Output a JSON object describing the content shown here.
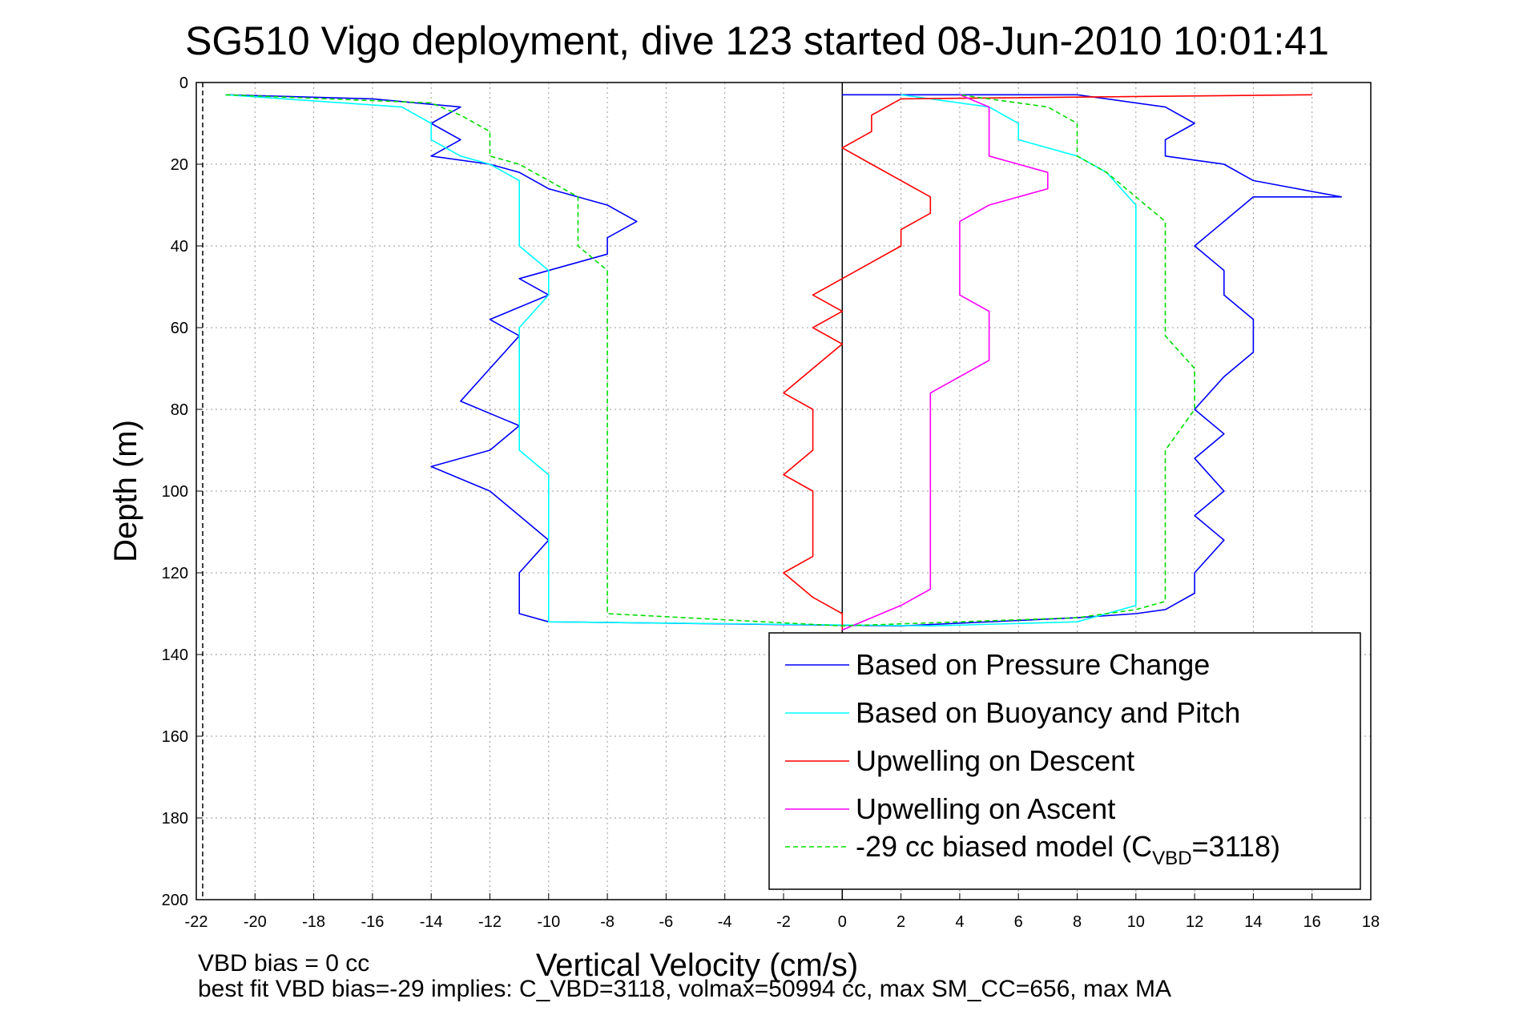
{
  "chart_data": {
    "type": "line",
    "title": "SG510 Vigo deployment, dive 123 started 08-Jun-2010 10:01:41",
    "xlabel": "Vertical Velocity (cm/s)",
    "ylabel": "Depth (m)",
    "xlim": [
      -22,
      18
    ],
    "ylim": [
      200,
      0
    ],
    "y_reversed": true,
    "grid": true,
    "x_ticks": [
      "-22",
      "-20",
      "-18",
      "-16",
      "-14",
      "-12",
      "-10",
      "-8",
      "-6",
      "-4",
      "-2",
      "0",
      "2",
      "4",
      "6",
      "8",
      "10",
      "12",
      "14",
      "16",
      "18"
    ],
    "y_ticks": [
      "0",
      "20",
      "40",
      "60",
      "80",
      "100",
      "120",
      "140",
      "160",
      "180",
      "200"
    ],
    "legend_position": "bottom-right",
    "series": [
      {
        "name": "Based on Pressure Change",
        "color": "#0000ff",
        "style": "solid",
        "points": [
          [
            -21,
            3
          ],
          [
            -16,
            4
          ],
          [
            -13,
            6
          ],
          [
            -14,
            10
          ],
          [
            -13,
            14
          ],
          [
            -14,
            18
          ],
          [
            -12,
            20
          ],
          [
            -11,
            22
          ],
          [
            -10,
            26
          ],
          [
            -8,
            30
          ],
          [
            -7,
            34
          ],
          [
            -8,
            38
          ],
          [
            -8,
            42
          ],
          [
            -11,
            48
          ],
          [
            -10,
            52
          ],
          [
            -12,
            58
          ],
          [
            -11,
            62
          ],
          [
            -12,
            70
          ],
          [
            -13,
            78
          ],
          [
            -11,
            84
          ],
          [
            -12,
            90
          ],
          [
            -14,
            94
          ],
          [
            -12,
            100
          ],
          [
            -11,
            106
          ],
          [
            -10,
            112
          ],
          [
            -11,
            120
          ],
          [
            -11,
            126
          ],
          [
            -11,
            130
          ],
          [
            -10,
            132
          ],
          [
            2,
            133
          ],
          [
            8,
            131
          ],
          [
            10,
            130
          ],
          [
            11,
            129
          ],
          [
            12,
            125
          ],
          [
            12,
            120
          ],
          [
            13,
            112
          ],
          [
            12,
            106
          ],
          [
            13,
            100
          ],
          [
            12,
            92
          ],
          [
            13,
            86
          ],
          [
            12,
            80
          ],
          [
            13,
            72
          ],
          [
            14,
            66
          ],
          [
            14,
            58
          ],
          [
            13,
            52
          ],
          [
            13,
            46
          ],
          [
            12,
            40
          ],
          [
            13,
            34
          ],
          [
            14,
            28
          ],
          [
            17,
            28
          ],
          [
            14,
            24
          ],
          [
            13,
            20
          ],
          [
            11,
            18
          ],
          [
            11,
            14
          ],
          [
            12,
            10
          ],
          [
            11,
            6
          ],
          [
            8,
            3
          ],
          [
            0,
            3
          ]
        ]
      },
      {
        "name": "Based on Buoyancy and Pitch",
        "color": "#00ffff",
        "style": "solid",
        "points": [
          [
            -21,
            3
          ],
          [
            -15,
            6
          ],
          [
            -14,
            10
          ],
          [
            -14,
            14
          ],
          [
            -13,
            18
          ],
          [
            -12,
            20
          ],
          [
            -11,
            24
          ],
          [
            -11,
            30
          ],
          [
            -11,
            36
          ],
          [
            -11,
            40
          ],
          [
            -10,
            46
          ],
          [
            -10,
            52
          ],
          [
            -11,
            60
          ],
          [
            -11,
            70
          ],
          [
            -11,
            80
          ],
          [
            -11,
            90
          ],
          [
            -10,
            96
          ],
          [
            -10,
            100
          ],
          [
            -10,
            110
          ],
          [
            -10,
            120
          ],
          [
            -10,
            128
          ],
          [
            -10,
            132
          ],
          [
            3,
            133
          ],
          [
            8,
            132
          ],
          [
            9,
            130
          ],
          [
            10,
            128
          ],
          [
            10,
            120
          ],
          [
            10,
            110
          ],
          [
            10,
            100
          ],
          [
            10,
            90
          ],
          [
            10,
            80
          ],
          [
            10,
            70
          ],
          [
            10,
            60
          ],
          [
            10,
            50
          ],
          [
            10,
            40
          ],
          [
            10,
            30
          ],
          [
            9,
            22
          ],
          [
            8,
            18
          ],
          [
            6,
            14
          ],
          [
            6,
            10
          ],
          [
            5,
            6
          ],
          [
            2,
            3
          ]
        ]
      },
      {
        "name": "Upwelling on Descent",
        "color": "#ff0000",
        "style": "solid",
        "points": [
          [
            16,
            3
          ],
          [
            2,
            4
          ],
          [
            1,
            8
          ],
          [
            1,
            12
          ],
          [
            0,
            16
          ],
          [
            1,
            20
          ],
          [
            2,
            24
          ],
          [
            3,
            28
          ],
          [
            3,
            32
          ],
          [
            2,
            36
          ],
          [
            2,
            40
          ],
          [
            1,
            44
          ],
          [
            0,
            48
          ],
          [
            -1,
            52
          ],
          [
            0,
            56
          ],
          [
            -1,
            60
          ],
          [
            0,
            64
          ],
          [
            -1,
            70
          ],
          [
            -2,
            76
          ],
          [
            -1,
            80
          ],
          [
            -1,
            86
          ],
          [
            -1,
            90
          ],
          [
            -2,
            96
          ],
          [
            -1,
            100
          ],
          [
            -1,
            106
          ],
          [
            -1,
            110
          ],
          [
            -1,
            116
          ],
          [
            -2,
            120
          ],
          [
            -1,
            126
          ],
          [
            0,
            130
          ],
          [
            0,
            134
          ]
        ]
      },
      {
        "name": "Upwelling on Ascent",
        "color": "#ff00ff",
        "style": "solid",
        "points": [
          [
            0,
            134
          ],
          [
            1,
            131
          ],
          [
            2,
            128
          ],
          [
            3,
            124
          ],
          [
            3,
            120
          ],
          [
            3,
            116
          ],
          [
            3,
            110
          ],
          [
            3,
            104
          ],
          [
            3,
            98
          ],
          [
            3,
            92
          ],
          [
            3,
            86
          ],
          [
            3,
            80
          ],
          [
            3,
            76
          ],
          [
            4,
            72
          ],
          [
            5,
            68
          ],
          [
            5,
            62
          ],
          [
            5,
            56
          ],
          [
            4,
            52
          ],
          [
            4,
            46
          ],
          [
            4,
            40
          ],
          [
            4,
            34
          ],
          [
            5,
            30
          ],
          [
            7,
            26
          ],
          [
            7,
            22
          ],
          [
            5,
            18
          ],
          [
            5,
            14
          ],
          [
            5,
            10
          ],
          [
            5,
            6
          ],
          [
            4,
            3
          ]
        ]
      },
      {
        "name": "-29 cc biased model",
        "name_subscript": "VBD",
        "legend_label_value": "=3118)",
        "legend_label_prefix": "-29 cc biased model (C",
        "color": "#00dd00",
        "style": "dashed",
        "points": [
          [
            -21,
            3
          ],
          [
            -14,
            5
          ],
          [
            -13,
            8
          ],
          [
            -12,
            12
          ],
          [
            -12,
            18
          ],
          [
            -11,
            20
          ],
          [
            -10,
            24
          ],
          [
            -9,
            28
          ],
          [
            -9,
            34
          ],
          [
            -9,
            40
          ],
          [
            -8,
            46
          ],
          [
            -8,
            52
          ],
          [
            -8,
            58
          ],
          [
            -8,
            66
          ],
          [
            -8,
            74
          ],
          [
            -8,
            80
          ],
          [
            -8,
            90
          ],
          [
            -8,
            96
          ],
          [
            -8,
            102
          ],
          [
            -8,
            110
          ],
          [
            -8,
            120
          ],
          [
            -8,
            126
          ],
          [
            -8,
            130
          ],
          [
            0,
            133
          ],
          [
            8,
            131
          ],
          [
            10,
            129
          ],
          [
            11,
            127
          ],
          [
            11,
            120
          ],
          [
            11,
            110
          ],
          [
            11,
            100
          ],
          [
            11,
            90
          ],
          [
            12,
            80
          ],
          [
            12,
            70
          ],
          [
            11,
            62
          ],
          [
            11,
            50
          ],
          [
            11,
            40
          ],
          [
            11,
            34
          ],
          [
            10,
            28
          ],
          [
            9,
            22
          ],
          [
            8,
            18
          ],
          [
            8,
            14
          ],
          [
            8,
            10
          ],
          [
            7,
            6
          ],
          [
            4,
            3
          ]
        ]
      }
    ],
    "annotations": [
      "VBD bias = 0 cc",
      "best fit VBD bias=-29 implies: C_VBD=3118, volmax=50994 cc, max SM_CC=656, max MA"
    ]
  }
}
